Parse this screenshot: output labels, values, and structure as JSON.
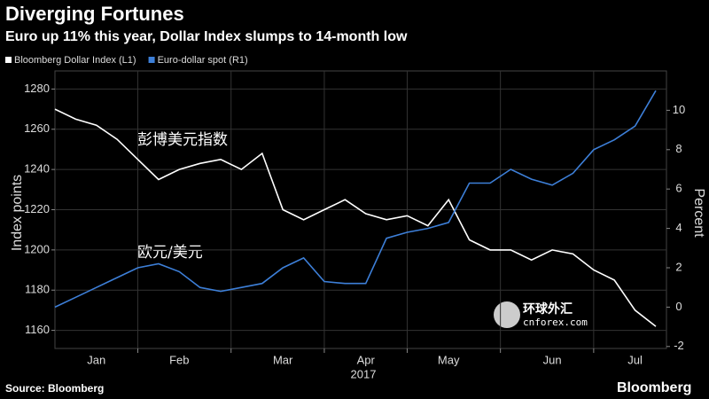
{
  "chart_data": {
    "type": "line",
    "title": "Diverging Fortunes",
    "subtitle": "Euro up 11% this year, Dollar Index slumps to 14-month low",
    "ylabel": "Index points",
    "y2label": "Percent",
    "xlabel": "2017",
    "source": "Source: Bloomberg",
    "brand": "Bloomberg",
    "annotations": [
      "彭博美元指数",
      "欧元/美元"
    ],
    "watermark": [
      "环球外汇",
      "cnforex.com"
    ],
    "categories": [
      null,
      null,
      "Jan",
      null,
      null,
      null,
      "Feb",
      null,
      null,
      null,
      null,
      "Mar",
      null,
      null,
      null,
      "Apr",
      null,
      null,
      null,
      "May",
      null,
      null,
      null,
      null,
      "Jun",
      null,
      null,
      null,
      "Jul",
      null
    ],
    "series": [
      {
        "name": "Bloomberg Dollar Index (L1)",
        "color": "#ffffff",
        "values": [
          1270,
          1265,
          1262,
          1255,
          1245,
          1235,
          1240,
          1243,
          1245,
          1240,
          1248,
          1220,
          1215,
          1220,
          1225,
          1218,
          1215,
          1217,
          1212,
          1225,
          1205,
          1200,
          1200,
          1195,
          1200,
          1198,
          1190,
          1185,
          1170,
          1162
        ]
      },
      {
        "name": "Euro-dollar spot (R1)",
        "color": "#3d7fd8",
        "axis": "y2",
        "values": [
          0,
          0.5,
          1,
          1.5,
          2,
          2.2,
          1.8,
          1,
          0.8,
          1,
          1.2,
          2,
          2.5,
          1.3,
          1.2,
          1.2,
          3.5,
          3.8,
          4,
          4.3,
          6.3,
          6.3,
          7,
          6.5,
          6.2,
          6.8,
          8,
          8.5,
          9.2,
          11
        ]
      }
    ],
    "ylim": [
      1151,
      1289
    ],
    "yticks": [
      1160,
      1180,
      1200,
      1220,
      1240,
      1260,
      1280
    ],
    "y2lim": [
      -2.1,
      12
    ],
    "y2ticks": [
      -2,
      0,
      2,
      4,
      6,
      8,
      10
    ],
    "grid": true
  }
}
